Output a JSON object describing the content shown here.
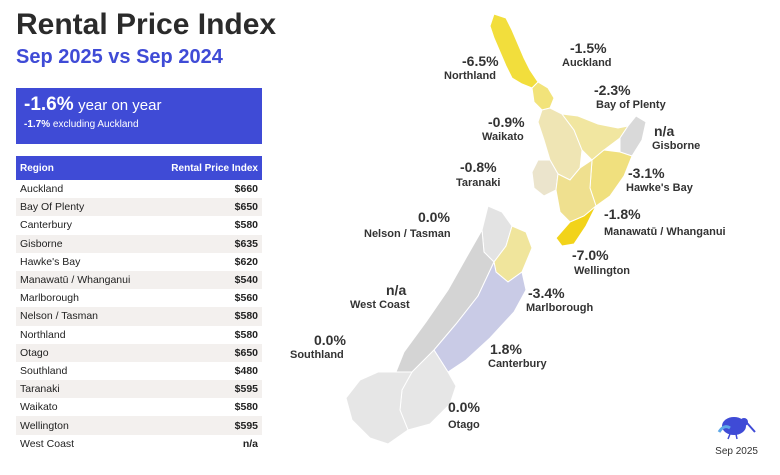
{
  "header": {
    "title": "Rental Price Index",
    "subtitle": "Sep 2025 vs Sep 2024"
  },
  "summary": {
    "headline_value": "-1.6%",
    "headline_text": "year on year",
    "excl_value": "-1.7%",
    "excl_text": "excluding Auckland"
  },
  "table": {
    "headers": [
      "Region",
      "Rental Price Index"
    ],
    "rows": [
      {
        "region": "Auckland",
        "value": "$660"
      },
      {
        "region": "Bay Of Plenty",
        "value": "$650"
      },
      {
        "region": "Canterbury",
        "value": "$580"
      },
      {
        "region": "Gisborne",
        "value": "$635"
      },
      {
        "region": "Hawke's Bay",
        "value": "$620"
      },
      {
        "region": "Manawatū / Whanganui",
        "value": "$540"
      },
      {
        "region": "Marlborough",
        "value": "$560"
      },
      {
        "region": "Nelson / Tasman",
        "value": "$580"
      },
      {
        "region": "Northland",
        "value": "$580"
      },
      {
        "region": "Otago",
        "value": "$650"
      },
      {
        "region": "Southland",
        "value": "$480"
      },
      {
        "region": "Taranaki",
        "value": "$595"
      },
      {
        "region": "Waikato",
        "value": "$580"
      },
      {
        "region": "Wellington",
        "value": "$595"
      },
      {
        "region": "West Coast",
        "value": "n/a"
      }
    ]
  },
  "chart_data": {
    "type": "map",
    "title": "Rental Price Index",
    "subtitle": "Sep 2025 vs Sep 2024",
    "regions": [
      {
        "name": "Northland",
        "change": "-6.5%",
        "value": -6.5,
        "color": "#f2de3c"
      },
      {
        "name": "Auckland",
        "change": "-1.5%",
        "value": -1.5,
        "color": "#f2e37a"
      },
      {
        "name": "Waikato",
        "change": "-0.9%",
        "value": -0.9,
        "color": "#efe5b4"
      },
      {
        "name": "Bay of Plenty",
        "change": "-2.3%",
        "value": -2.3,
        "color": "#f1e6a0"
      },
      {
        "name": "Gisborne",
        "change": "n/a",
        "value": null,
        "color": "#d9d9d9"
      },
      {
        "name": "Taranaki",
        "change": "-0.8%",
        "value": -0.8,
        "color": "#ebe4cc"
      },
      {
        "name": "Hawke's Bay",
        "change": "-3.1%",
        "value": -3.1,
        "color": "#f0e07e"
      },
      {
        "name": "Manawatū / Whanganui",
        "change": "-1.8%",
        "value": -1.8,
        "color": "#efe08f"
      },
      {
        "name": "Wellington",
        "change": "-7.0%",
        "value": -7.0,
        "color": "#f2d31a"
      },
      {
        "name": "Nelson / Tasman",
        "change": "0.0%",
        "value": 0.0,
        "color": "#e3e3e3"
      },
      {
        "name": "Marlborough",
        "change": "-3.4%",
        "value": -3.4,
        "color": "#f0e59c"
      },
      {
        "name": "West Coast",
        "change": "n/a",
        "value": null,
        "color": "#d4d4d4"
      },
      {
        "name": "Canterbury",
        "change": "1.8%",
        "value": 1.8,
        "color": "#c9cbe6"
      },
      {
        "name": "Southland",
        "change": "0.0%",
        "value": 0.0,
        "color": "#e6e6e6"
      },
      {
        "name": "Otago",
        "change": "0.0%",
        "value": 0.0,
        "color": "#e6e6e6"
      }
    ]
  },
  "footer": {
    "date": "Sep 2025"
  },
  "icons": {
    "logo": "kiwi-bird-icon"
  }
}
